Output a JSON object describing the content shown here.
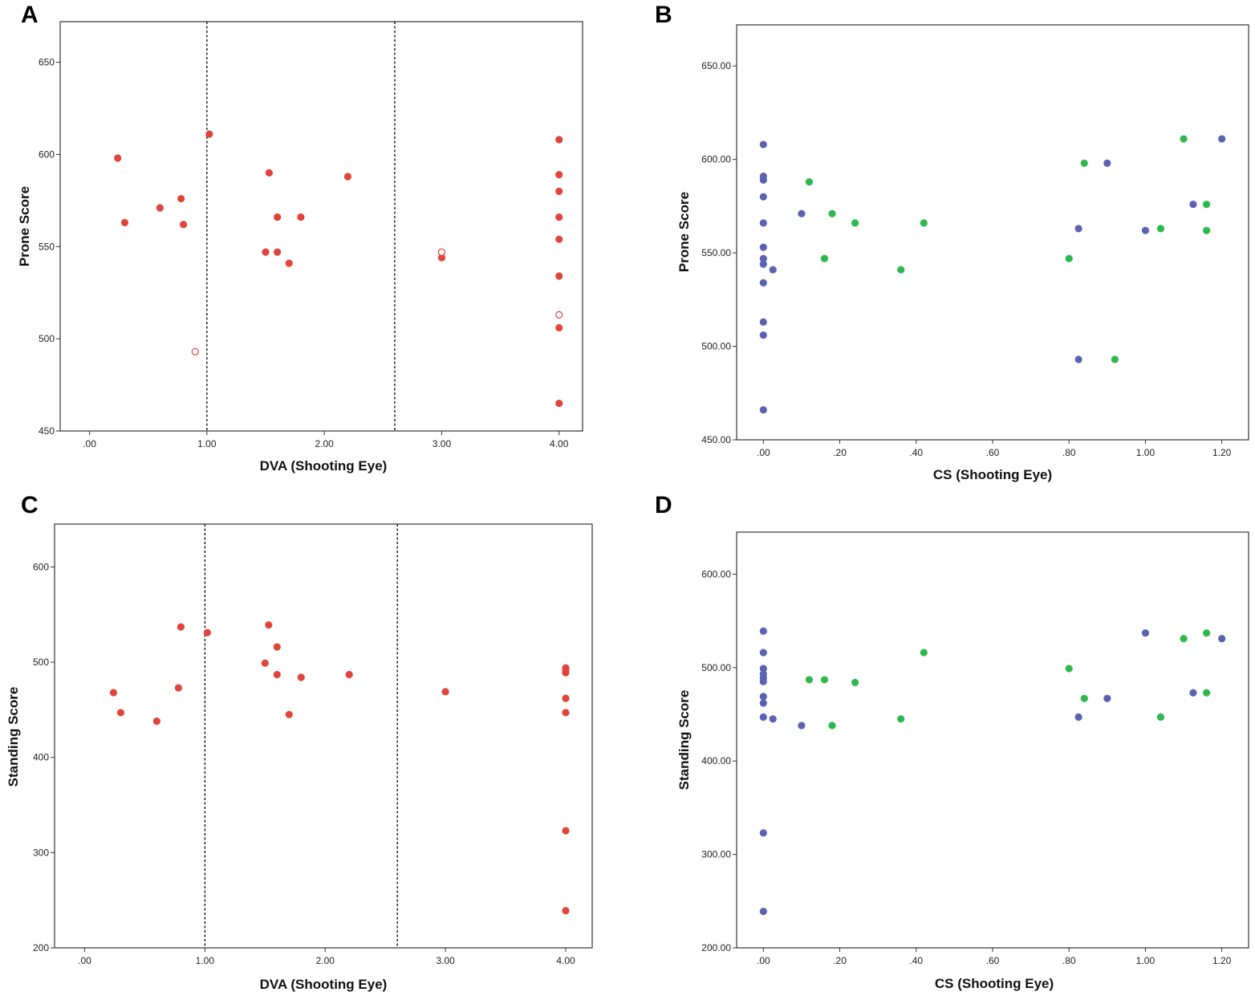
{
  "colors": {
    "red": "#e0443c",
    "blue": "#5b62b4",
    "green": "#2fb84e",
    "frame": "#333333"
  },
  "chart_data": [
    {
      "panel": "A",
      "type": "scatter",
      "xlabel": "DVA (Shooting Eye)",
      "ylabel": "Prone Score",
      "xlim": [
        -0.25,
        4.2
      ],
      "ylim": [
        450,
        672
      ],
      "xticks": [
        0,
        1,
        2,
        3,
        4
      ],
      "xtick_labels": [
        ".00",
        "1.00",
        "2.00",
        "3.00",
        "4.00"
      ],
      "yticks": [
        450,
        500,
        550,
        600,
        650
      ],
      "ytick_labels": [
        "450",
        "500",
        "550",
        "600",
        "650"
      ],
      "ref_lines_x": [
        1.0,
        2.6
      ],
      "series": [
        {
          "name": "filled",
          "color": "#e0443c",
          "hollow": false,
          "points": [
            [
              0.24,
              598
            ],
            [
              0.3,
              563
            ],
            [
              0.6,
              571
            ],
            [
              0.78,
              576
            ],
            [
              0.8,
              562
            ],
            [
              1.02,
              611
            ],
            [
              1.5,
              547
            ],
            [
              1.53,
              590
            ],
            [
              1.6,
              566
            ],
            [
              1.6,
              547
            ],
            [
              1.7,
              541
            ],
            [
              1.8,
              566
            ],
            [
              2.2,
              588
            ],
            [
              3.0,
              544
            ],
            [
              4.0,
              608
            ],
            [
              4.0,
              589
            ],
            [
              4.0,
              580
            ],
            [
              4.0,
              566
            ],
            [
              4.0,
              554
            ],
            [
              4.0,
              534
            ],
            [
              4.0,
              506
            ],
            [
              4.0,
              465
            ]
          ]
        },
        {
          "name": "hollow",
          "color": "#e0443c",
          "hollow": true,
          "points": [
            [
              0.9,
              493
            ],
            [
              3.0,
              547
            ],
            [
              4.0,
              513
            ]
          ]
        }
      ]
    },
    {
      "panel": "B",
      "type": "scatter",
      "xlabel": "CS (Shooting Eye)",
      "ylabel": "Prone Score",
      "xlim": [
        -0.07,
        1.27
      ],
      "ylim": [
        450,
        672
      ],
      "xticks": [
        0,
        0.2,
        0.4,
        0.6,
        0.8,
        1.0,
        1.2
      ],
      "xtick_labels": [
        ".00",
        ".20",
        ".40",
        ".60",
        ".80",
        "1.00",
        "1.20"
      ],
      "yticks": [
        450,
        500,
        550,
        600,
        650
      ],
      "ytick_labels": [
        "450.00",
        "500.00",
        "550.00",
        "600.00",
        "650.00"
      ],
      "ref_lines_x": [],
      "series": [
        {
          "name": "blue",
          "color": "#5b62b4",
          "hollow": false,
          "points": [
            [
              0,
              608
            ],
            [
              0,
              591
            ],
            [
              0,
              589
            ],
            [
              0,
              580
            ],
            [
              0,
              566
            ],
            [
              0,
              553
            ],
            [
              0,
              547
            ],
            [
              0,
              544
            ],
            [
              0,
              534
            ],
            [
              0,
              513
            ],
            [
              0,
              506
            ],
            [
              0,
              466
            ],
            [
              0.025,
              541
            ],
            [
              0.1,
              571
            ],
            [
              0.825,
              563
            ],
            [
              0.825,
              493
            ],
            [
              0.9,
              598
            ],
            [
              1.0,
              562
            ],
            [
              1.125,
              576
            ],
            [
              1.2,
              611
            ]
          ]
        },
        {
          "name": "green",
          "color": "#2fb84e",
          "hollow": false,
          "points": [
            [
              0.12,
              588
            ],
            [
              0.16,
              547
            ],
            [
              0.18,
              571
            ],
            [
              0.24,
              566
            ],
            [
              0.36,
              541
            ],
            [
              0.42,
              566
            ],
            [
              0.8,
              547
            ],
            [
              0.84,
              598
            ],
            [
              0.92,
              493
            ],
            [
              1.04,
              563
            ],
            [
              1.1,
              611
            ],
            [
              1.16,
              576
            ],
            [
              1.16,
              562
            ]
          ]
        }
      ]
    },
    {
      "panel": "C",
      "type": "scatter",
      "xlabel": "DVA (Shooting Eye)",
      "ylabel": "Standing Score",
      "xlim": [
        -0.25,
        4.22
      ],
      "ylim": [
        200,
        645
      ],
      "xticks": [
        0,
        1,
        2,
        3,
        4
      ],
      "xtick_labels": [
        ".00",
        "1.00",
        "2.00",
        "3.00",
        "4.00"
      ],
      "yticks": [
        200,
        300,
        400,
        500,
        600
      ],
      "ytick_labels": [
        "200",
        "300",
        "400",
        "500",
        "600"
      ],
      "ref_lines_x": [
        1.0,
        2.6
      ],
      "series": [
        {
          "name": "filled",
          "color": "#e0443c",
          "hollow": false,
          "points": [
            [
              0.24,
              468
            ],
            [
              0.3,
              447
            ],
            [
              0.6,
              438
            ],
            [
              0.78,
              473
            ],
            [
              0.8,
              537
            ],
            [
              1.02,
              531
            ],
            [
              1.5,
              499
            ],
            [
              1.53,
              539
            ],
            [
              1.6,
              516
            ],
            [
              1.6,
              487
            ],
            [
              1.7,
              445
            ],
            [
              1.8,
              484
            ],
            [
              2.2,
              487
            ],
            [
              3.0,
              469
            ],
            [
              4.0,
              494
            ],
            [
              4.0,
              492
            ],
            [
              4.0,
              489
            ],
            [
              4.0,
              462
            ],
            [
              4.0,
              447
            ],
            [
              4.0,
              323
            ],
            [
              4.0,
              239
            ]
          ]
        }
      ]
    },
    {
      "panel": "D",
      "type": "scatter",
      "xlabel": "CS (Shooting Eye)",
      "ylabel": "Standing Score",
      "xlim": [
        -0.07,
        1.27
      ],
      "ylim": [
        200,
        645
      ],
      "xticks": [
        0,
        0.2,
        0.4,
        0.6,
        0.8,
        1.0,
        1.2
      ],
      "xtick_labels": [
        ".00",
        ".20",
        ".40",
        ".60",
        ".80",
        "1.00",
        "1.20"
      ],
      "yticks": [
        200,
        300,
        400,
        500,
        600
      ],
      "ytick_labels": [
        "200.00",
        "300.00",
        "400.00",
        "500.00",
        "600.00"
      ],
      "ref_lines_x": [],
      "series": [
        {
          "name": "blue",
          "color": "#5b62b4",
          "hollow": false,
          "points": [
            [
              0,
              539
            ],
            [
              0,
              516
            ],
            [
              0,
              499
            ],
            [
              0,
              493
            ],
            [
              0,
              489
            ],
            [
              0,
              485
            ],
            [
              0,
              469
            ],
            [
              0,
              462
            ],
            [
              0,
              447
            ],
            [
              0,
              323
            ],
            [
              0,
              239
            ],
            [
              0.025,
              445
            ],
            [
              0.1,
              438
            ],
            [
              0.825,
              447
            ],
            [
              0.9,
              467
            ],
            [
              1.0,
              537
            ],
            [
              1.125,
              473
            ],
            [
              1.2,
              531
            ]
          ]
        },
        {
          "name": "green",
          "color": "#2fb84e",
          "hollow": false,
          "points": [
            [
              0.12,
              487
            ],
            [
              0.16,
              487
            ],
            [
              0.18,
              438
            ],
            [
              0.24,
              484
            ],
            [
              0.36,
              445
            ],
            [
              0.42,
              516
            ],
            [
              0.8,
              499
            ],
            [
              0.84,
              467
            ],
            [
              1.04,
              447
            ],
            [
              1.1,
              531
            ],
            [
              1.16,
              537
            ],
            [
              1.16,
              473
            ]
          ]
        }
      ]
    }
  ]
}
